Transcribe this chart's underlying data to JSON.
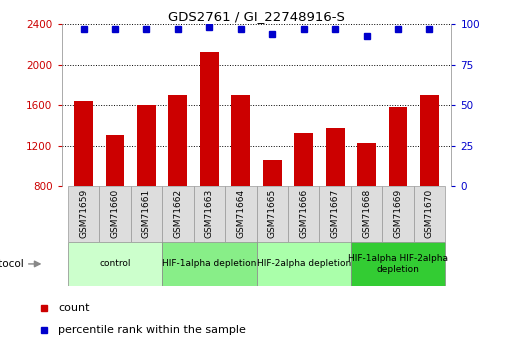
{
  "title": "GDS2761 / GI_22748916-S",
  "samples": [
    "GSM71659",
    "GSM71660",
    "GSM71661",
    "GSM71662",
    "GSM71663",
    "GSM71664",
    "GSM71665",
    "GSM71666",
    "GSM71667",
    "GSM71668",
    "GSM71669",
    "GSM71670"
  ],
  "counts": [
    1640,
    1310,
    1600,
    1700,
    2130,
    1700,
    1060,
    1330,
    1380,
    1230,
    1580,
    1700
  ],
  "percentiles": [
    97,
    97,
    97,
    97,
    98,
    97,
    94,
    97,
    97,
    93,
    97,
    97
  ],
  "bar_color": "#cc0000",
  "dot_color": "#0000cc",
  "ylim_left": [
    800,
    2400
  ],
  "ylim_right": [
    0,
    100
  ],
  "yticks_left": [
    800,
    1200,
    1600,
    2000,
    2400
  ],
  "yticks_right": [
    0,
    25,
    50,
    75,
    100
  ],
  "protocol_groups": [
    {
      "label": "control",
      "start": 0,
      "end": 2,
      "color": "#ccffcc"
    },
    {
      "label": "HIF-1alpha depletion",
      "start": 3,
      "end": 5,
      "color": "#88ee88"
    },
    {
      "label": "HIF-2alpha depletion",
      "start": 6,
      "end": 8,
      "color": "#aaffaa"
    },
    {
      "label": "HIF-1alpha HIF-2alpha\ndepletion",
      "start": 9,
      "end": 11,
      "color": "#33cc33"
    }
  ],
  "legend_count_label": "count",
  "legend_percentile_label": "percentile rank within the sample",
  "protocol_label": "protocol",
  "left_tick_color": "#cc0000",
  "right_tick_color": "#0000cc",
  "sample_box_color": "#dddddd"
}
